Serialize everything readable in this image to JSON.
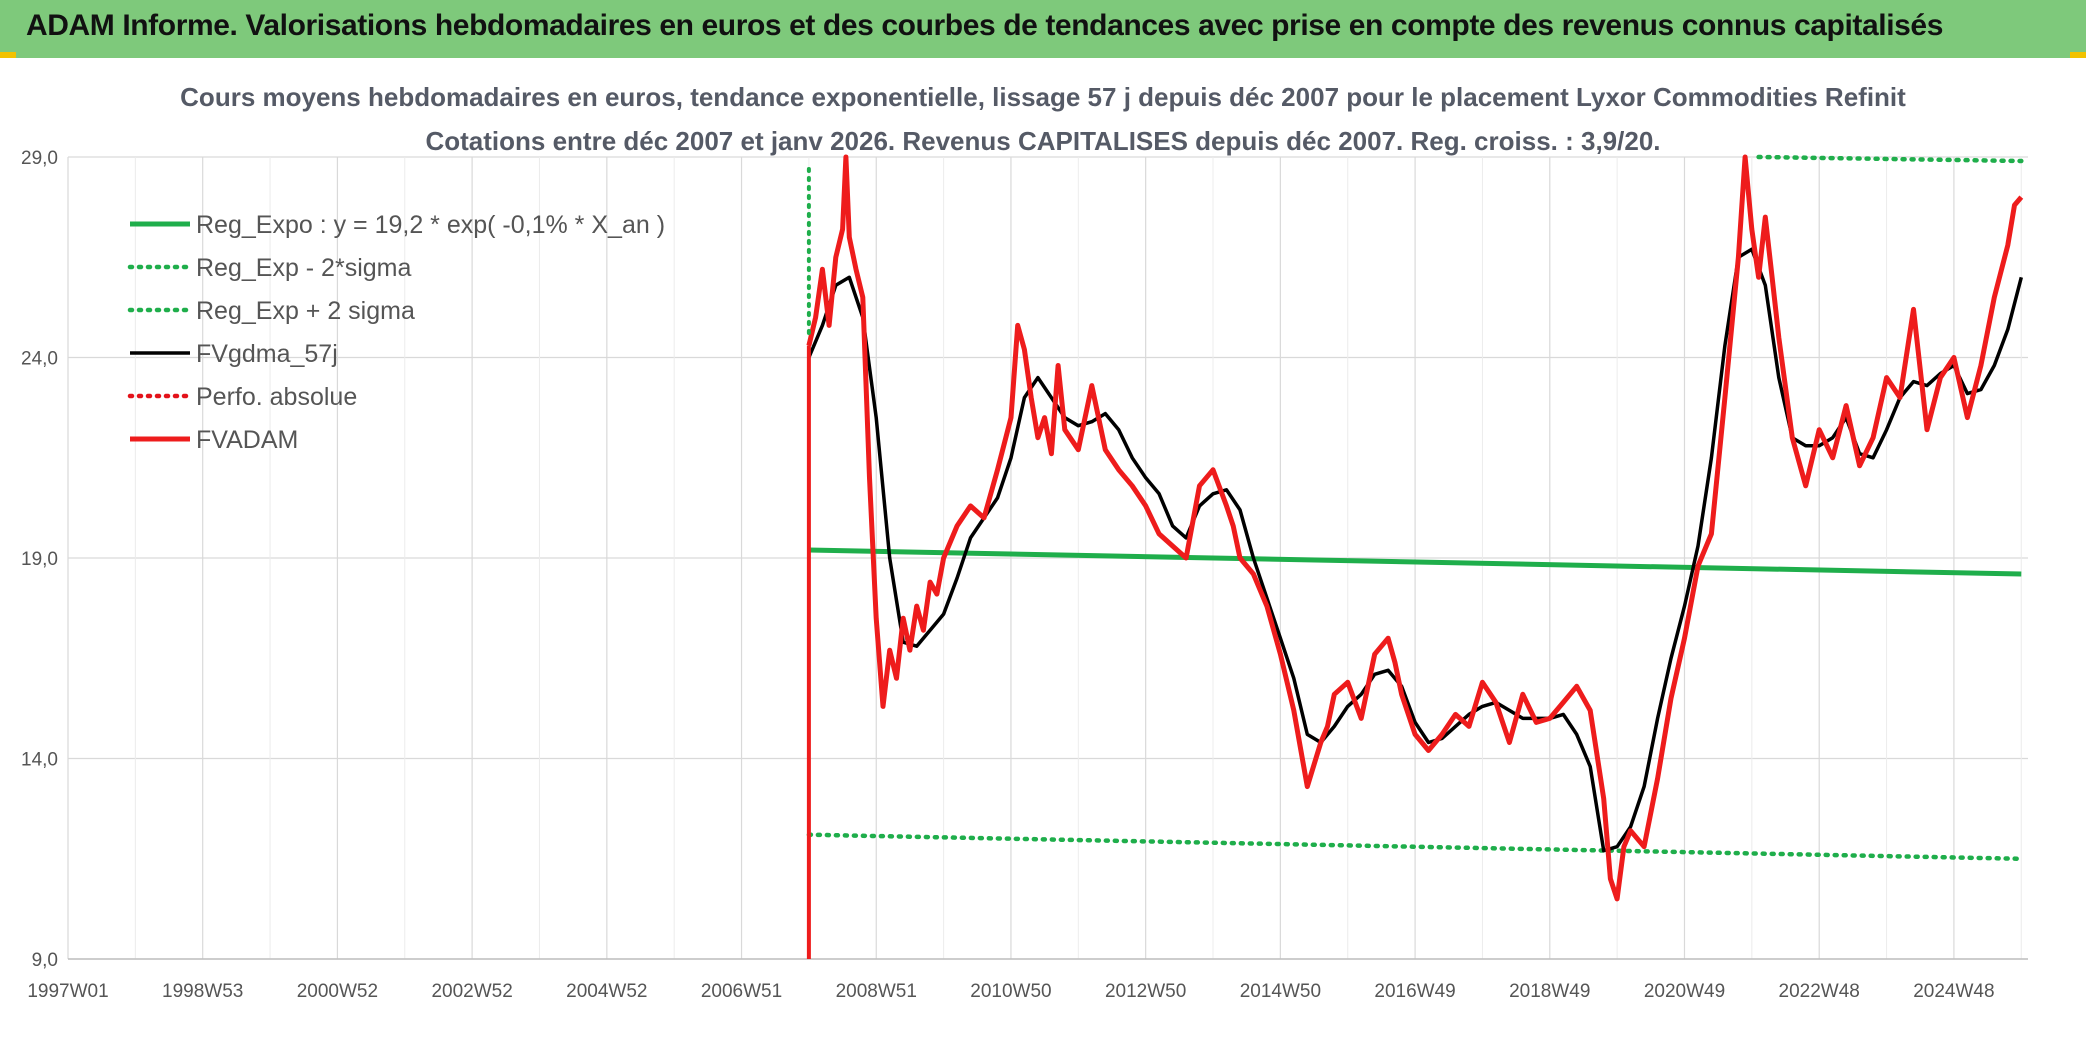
{
  "header": {
    "title": "ADAM Informe. Valorisations hebdomadaires en euros et des courbes de tendances avec prise en compte des revenus connus capitalisés"
  },
  "colors": {
    "header_bg": "#7ec97b",
    "reg_expo": "#1fae4b",
    "sigma": "#1fae4b",
    "fvgdma": "#000000",
    "perfo": "#e3121a",
    "fvadam": "#ee1c1c",
    "grid": "#d9d9d9"
  },
  "chart_data": {
    "type": "line",
    "title": "Cours moyens hebdomadaires en euros, tendance exponentielle, lissage 57 j depuis déc 2007 pour le placement Lyxor Commodities Refinit",
    "subtitle": "Cotations entre déc 2007 et janv 2026. Revenus CAPITALISES depuis déc 2007. Reg. croiss. : 3,9/20.",
    "xlabel": "",
    "ylabel": "",
    "x_range": [
      1997.0,
      2026.1
    ],
    "ylim": [
      9.0,
      29.0
    ],
    "y_ticks": [
      "9,0",
      "14,0",
      "19,0",
      "24,0",
      "29,0"
    ],
    "y_tick_values": [
      9,
      14,
      19,
      24,
      29
    ],
    "x_ticks": [
      "1997W01",
      "1998W53",
      "2000W52",
      "2002W52",
      "2004W52",
      "2006W51",
      "2008W51",
      "2010W50",
      "2012W50",
      "2014W50",
      "2016W49",
      "2018W49",
      "2020W49",
      "2022W48",
      "2024W48"
    ],
    "x_tick_values": [
      1997.0,
      1999.0,
      2001.0,
      2003.0,
      2005.0,
      2007.0,
      2009.0,
      2011.0,
      2013.0,
      2015.0,
      2017.0,
      2019.0,
      2021.0,
      2023.0,
      2025.0
    ],
    "grid": true,
    "legend_position": "top-left",
    "series": [
      {
        "name": "Reg_Expo : y = 19,2 * exp( -0,1% *  X_an )",
        "style": "solid-thick",
        "x": [
          2008.0,
          2026.0
        ],
        "values": [
          19.2,
          18.6
        ]
      },
      {
        "name": "Reg_Exp - 2*sigma",
        "style": "dotted",
        "x": [
          2008.0,
          2026.0
        ],
        "values": [
          12.1,
          11.5
        ]
      },
      {
        "name": "Reg_Exp + 2 sigma",
        "style": "dotted",
        "x": [
          2022.1,
          2026.0
        ],
        "values": [
          29.0,
          28.9
        ]
      },
      {
        "name": "FVgdma_57j",
        "style": "solid",
        "x": [
          2008.0,
          2008.2,
          2008.4,
          2008.6,
          2008.8,
          2009.0,
          2009.2,
          2009.4,
          2009.6,
          2009.8,
          2010.0,
          2010.2,
          2010.4,
          2010.6,
          2010.8,
          2011.0,
          2011.2,
          2011.4,
          2011.6,
          2011.8,
          2012.0,
          2012.2,
          2012.4,
          2012.6,
          2012.8,
          2013.0,
          2013.2,
          2013.4,
          2013.6,
          2013.8,
          2014.0,
          2014.2,
          2014.4,
          2014.6,
          2014.8,
          2015.0,
          2015.2,
          2015.4,
          2015.6,
          2015.8,
          2016.0,
          2016.2,
          2016.4,
          2016.6,
          2016.8,
          2017.0,
          2017.2,
          2017.4,
          2017.6,
          2017.8,
          2018.0,
          2018.2,
          2018.4,
          2018.6,
          2018.8,
          2019.0,
          2019.2,
          2019.4,
          2019.6,
          2019.8,
          2020.0,
          2020.2,
          2020.4,
          2020.6,
          2020.8,
          2021.0,
          2021.2,
          2021.4,
          2021.6,
          2021.8,
          2022.0,
          2022.2,
          2022.4,
          2022.6,
          2022.8,
          2023.0,
          2023.2,
          2023.4,
          2023.6,
          2023.8,
          2024.0,
          2024.2,
          2024.4,
          2024.6,
          2024.8,
          2025.0,
          2025.2,
          2025.4,
          2025.6,
          2025.8,
          2026.0
        ],
        "values": [
          24.0,
          24.8,
          25.8,
          26.0,
          25.0,
          22.5,
          19.0,
          16.9,
          16.8,
          17.2,
          17.6,
          18.5,
          19.5,
          20.0,
          20.5,
          21.5,
          23.0,
          23.5,
          23.0,
          22.5,
          22.3,
          22.4,
          22.6,
          22.2,
          21.5,
          21.0,
          20.6,
          19.8,
          19.5,
          20.3,
          20.6,
          20.7,
          20.2,
          19.0,
          18.0,
          17.0,
          16.0,
          14.6,
          14.4,
          14.8,
          15.3,
          15.6,
          16.1,
          16.2,
          15.8,
          14.9,
          14.4,
          14.5,
          14.8,
          15.1,
          15.3,
          15.4,
          15.2,
          15.0,
          15.0,
          15.0,
          15.1,
          14.6,
          13.8,
          11.7,
          11.8,
          12.3,
          13.3,
          15.0,
          16.5,
          17.8,
          19.3,
          21.5,
          24.3,
          26.5,
          26.7,
          25.8,
          23.5,
          22.0,
          21.8,
          21.8,
          22.0,
          22.5,
          21.6,
          21.5,
          22.2,
          23.0,
          23.4,
          23.3,
          23.6,
          23.8,
          23.1,
          23.2,
          23.8,
          24.7,
          26.0
        ]
      },
      {
        "name": "Perfo. absolue",
        "style": "dotted",
        "x": [],
        "values": []
      },
      {
        "name": "FVADAM",
        "style": "solid-thick",
        "x": [
          2008.0,
          2008.1,
          2008.2,
          2008.3,
          2008.4,
          2008.5,
          2008.55,
          2008.6,
          2008.7,
          2008.8,
          2008.9,
          2009.0,
          2009.1,
          2009.2,
          2009.3,
          2009.4,
          2009.5,
          2009.6,
          2009.7,
          2009.8,
          2009.9,
          2010.0,
          2010.2,
          2010.4,
          2010.6,
          2010.8,
          2011.0,
          2011.1,
          2011.2,
          2011.3,
          2011.4,
          2011.5,
          2011.6,
          2011.7,
          2011.8,
          2012.0,
          2012.2,
          2012.4,
          2012.6,
          2012.8,
          2013.0,
          2013.2,
          2013.4,
          2013.6,
          2013.8,
          2014.0,
          2014.2,
          2014.3,
          2014.4,
          2014.6,
          2014.8,
          2015.0,
          2015.2,
          2015.4,
          2015.6,
          2015.7,
          2015.8,
          2016.0,
          2016.2,
          2016.4,
          2016.6,
          2016.7,
          2016.8,
          2017.0,
          2017.2,
          2017.4,
          2017.6,
          2017.8,
          2018.0,
          2018.2,
          2018.4,
          2018.6,
          2018.8,
          2019.0,
          2019.2,
          2019.4,
          2019.6,
          2019.8,
          2019.9,
          2020.0,
          2020.1,
          2020.2,
          2020.4,
          2020.6,
          2020.8,
          2021.0,
          2021.2,
          2021.4,
          2021.6,
          2021.8,
          2021.9,
          2022.0,
          2022.1,
          2022.2,
          2022.3,
          2022.4,
          2022.6,
          2022.8,
          2023.0,
          2023.2,
          2023.4,
          2023.6,
          2023.8,
          2024.0,
          2024.2,
          2024.4,
          2024.6,
          2024.8,
          2025.0,
          2025.2,
          2025.4,
          2025.6,
          2025.8,
          2025.9,
          2026.0
        ],
        "values": [
          24.3,
          25.0,
          26.2,
          24.8,
          26.5,
          27.2,
          29.0,
          27.0,
          26.2,
          25.5,
          21.0,
          17.5,
          15.3,
          16.7,
          16.0,
          17.5,
          16.7,
          17.8,
          17.2,
          18.4,
          18.1,
          19.0,
          19.8,
          20.3,
          20.0,
          21.2,
          22.5,
          24.8,
          24.2,
          23.0,
          22.0,
          22.5,
          21.6,
          23.8,
          22.2,
          21.7,
          23.3,
          21.7,
          21.2,
          20.8,
          20.3,
          19.6,
          19.3,
          19.0,
          20.8,
          21.2,
          20.3,
          19.8,
          19.0,
          18.6,
          17.8,
          16.6,
          15.2,
          13.3,
          14.4,
          14.8,
          15.6,
          15.9,
          15.0,
          16.6,
          17.0,
          16.4,
          15.6,
          14.6,
          14.2,
          14.6,
          15.1,
          14.8,
          15.9,
          15.4,
          14.4,
          15.6,
          14.9,
          15.0,
          15.4,
          15.8,
          15.2,
          13.0,
          11.0,
          10.5,
          11.8,
          12.2,
          11.8,
          13.5,
          15.5,
          17.0,
          18.8,
          19.6,
          23.0,
          26.5,
          29.0,
          27.2,
          26.0,
          27.5,
          26.0,
          24.5,
          22.0,
          20.8,
          22.2,
          21.5,
          22.8,
          21.3,
          22.0,
          23.5,
          23.0,
          25.2,
          22.2,
          23.5,
          24.0,
          22.5,
          23.8,
          25.5,
          26.8,
          27.8,
          28.0
        ]
      }
    ]
  }
}
